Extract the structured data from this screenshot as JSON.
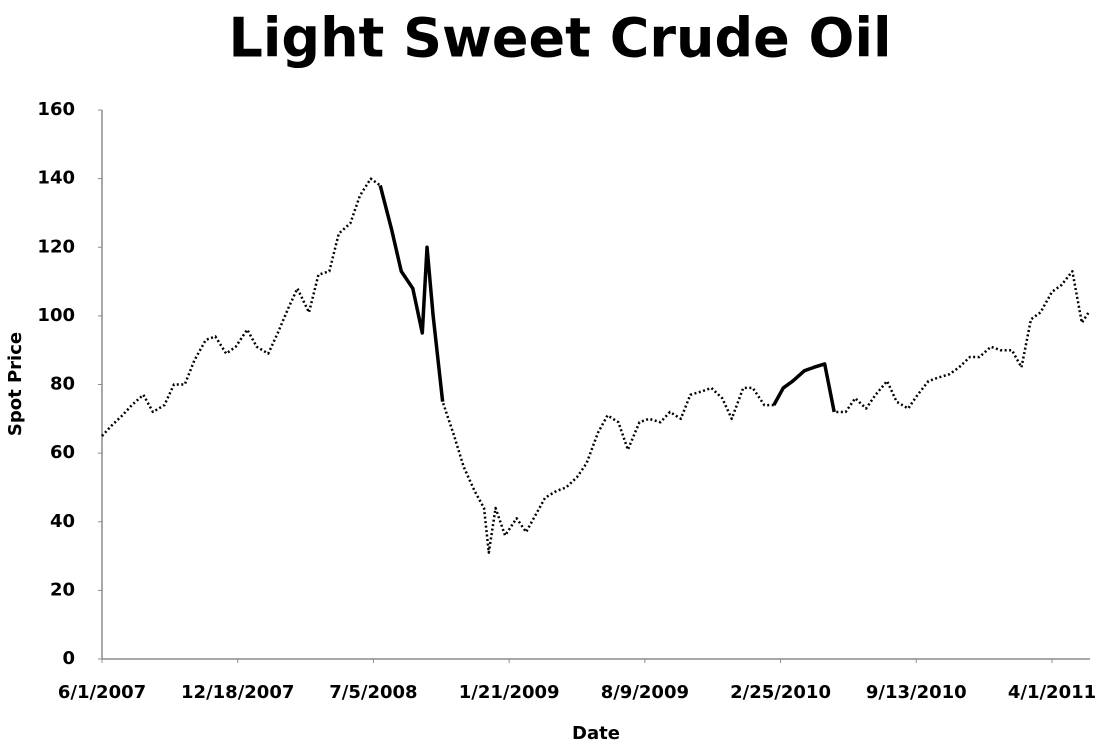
{
  "chart_data": {
    "type": "line",
    "title": "Light Sweet Crude Oil",
    "x_label": "Date",
    "y_label": "Spot Price",
    "x": [
      "6/1/2007",
      "6/15/2007",
      "7/1/2007",
      "7/15/2007",
      "8/1/2007",
      "8/15/2007",
      "9/1/2007",
      "9/15/2007",
      "10/1/2007",
      "10/15/2007",
      "11/1/2007",
      "11/15/2007",
      "12/1/2007",
      "12/15/2007",
      "1/1/2008",
      "1/15/2008",
      "2/1/2008",
      "2/15/2008",
      "3/1/2008",
      "3/15/2008",
      "4/1/2008",
      "4/15/2008",
      "5/1/2008",
      "5/15/2008",
      "6/1/2008",
      "6/15/2008",
      "7/1/2008",
      "7/15/2008",
      "8/1/2008",
      "8/15/2008",
      "9/1/2008",
      "9/15/2008",
      "9/22/2008",
      "10/1/2008",
      "10/15/2008",
      "11/1/2008",
      "11/15/2008",
      "12/1/2008",
      "12/15/2008",
      "12/22/2008",
      "1/1/2009",
      "1/15/2009",
      "2/1/2009",
      "2/15/2009",
      "3/1/2009",
      "3/15/2009",
      "4/1/2009",
      "4/15/2009",
      "5/1/2009",
      "5/15/2009",
      "6/1/2009",
      "6/15/2009",
      "7/1/2009",
      "7/15/2009",
      "8/1/2009",
      "8/15/2009",
      "9/1/2009",
      "9/15/2009",
      "10/1/2009",
      "10/15/2009",
      "11/1/2009",
      "11/15/2009",
      "12/1/2009",
      "12/15/2009",
      "1/1/2010",
      "1/15/2010",
      "2/1/2010",
      "2/15/2010",
      "3/1/2010",
      "3/15/2010",
      "4/1/2010",
      "4/15/2010",
      "5/1/2010",
      "5/15/2010",
      "6/1/2010",
      "6/15/2010",
      "7/1/2010",
      "7/15/2010",
      "8/1/2010",
      "8/15/2010",
      "9/1/2010",
      "9/15/2010",
      "10/1/2010",
      "10/15/2010",
      "11/1/2010",
      "11/15/2010",
      "12/1/2010",
      "12/15/2010",
      "1/1/2011",
      "1/15/2011",
      "2/1/2011",
      "2/15/2011",
      "3/1/2011",
      "3/15/2011",
      "4/1/2011",
      "4/15/2011",
      "5/1/2011",
      "5/15/2011",
      "5/25/2011"
    ],
    "series": [
      {
        "color": "#000000",
        "dash": "dotted",
        "values": [
          65,
          68,
          71,
          74,
          77,
          72,
          74,
          80,
          80,
          87,
          93,
          94,
          89,
          91,
          96,
          91,
          89,
          95,
          102,
          108,
          101,
          112,
          113,
          124,
          127,
          135,
          140,
          138,
          125,
          113,
          108,
          95,
          120,
          100,
          75,
          65,
          56,
          49,
          44,
          31,
          44,
          36,
          41,
          37,
          42,
          47,
          49,
          50,
          53,
          57,
          66,
          71,
          69,
          61,
          69,
          70,
          69,
          72,
          70,
          77,
          78,
          79,
          76,
          70,
          79,
          79,
          74,
          74,
          79,
          81,
          84,
          85,
          86,
          72,
          72,
          76,
          73,
          77,
          81,
          75,
          73,
          77,
          81,
          82,
          83,
          85,
          88,
          88,
          91,
          90,
          90,
          85,
          99,
          101,
          107,
          109,
          113,
          98,
          101
        ]
      },
      {
        "color": "#000000",
        "dash": "solid",
        "values": [
          null,
          null,
          null,
          null,
          null,
          null,
          null,
          null,
          null,
          null,
          null,
          null,
          null,
          null,
          null,
          null,
          null,
          null,
          null,
          null,
          null,
          null,
          null,
          null,
          null,
          null,
          null,
          138,
          125,
          113,
          108,
          95,
          120,
          100,
          75,
          null,
          null,
          null,
          null,
          null,
          null,
          null,
          null,
          null,
          null,
          null,
          null,
          null,
          null,
          null,
          null,
          null,
          null,
          null,
          null,
          null,
          null,
          null,
          null,
          null,
          null,
          null,
          null,
          null,
          null,
          null,
          null,
          74,
          79,
          81,
          84,
          85,
          86,
          72,
          null,
          null,
          null,
          null,
          null,
          null,
          null,
          null,
          null,
          null,
          null,
          null,
          null,
          null,
          null,
          null,
          null,
          null,
          null,
          null,
          null,
          null,
          null,
          null,
          null
        ]
      }
    ],
    "xlim": [
      "6/1/2007",
      "5/27/2011"
    ],
    "xticks": [
      "6/1/2007",
      "12/18/2007",
      "7/5/2008",
      "1/21/2009",
      "8/9/2009",
      "2/25/2010",
      "9/13/2010",
      "4/1/2011"
    ],
    "ylim": [
      0,
      160
    ],
    "yticks": [
      0,
      20,
      40,
      60,
      80,
      100,
      120,
      140,
      160
    ],
    "grid": false
  }
}
